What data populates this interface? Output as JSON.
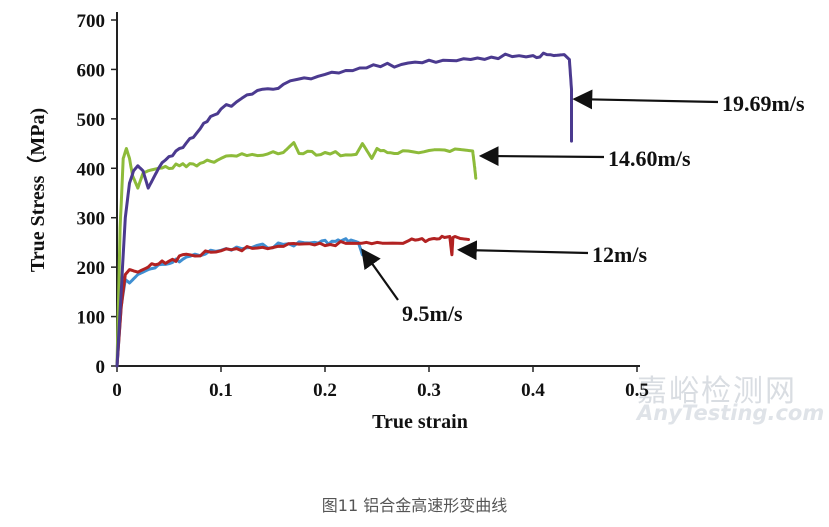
{
  "caption": "图11 铝合金高速形变曲线",
  "watermark": {
    "main": "嘉峪检测网",
    "sub": "AnyTesting.com"
  },
  "chart_data": {
    "type": "line",
    "title": "",
    "xlabel": "True strain",
    "ylabel": "True Stress（MPa)",
    "xlim": [
      0,
      0.5
    ],
    "ylim": [
      0,
      700
    ],
    "x_ticks": [
      0,
      0.1,
      0.2,
      0.3,
      0.4,
      0.5
    ],
    "x_tick_labels": [
      "0",
      "0.1",
      "0.2",
      "0.3",
      "0.4",
      "0.5"
    ],
    "y_ticks": [
      0,
      100,
      200,
      300,
      400,
      500,
      600,
      700
    ],
    "y_tick_labels": [
      "0",
      "100",
      "200",
      "300",
      "400",
      "500",
      "600",
      "700"
    ],
    "grid": false,
    "legend": "none",
    "series": [
      {
        "name": "9.5m/s",
        "color": "#3f8fd2",
        "x": [
          0,
          0.004,
          0.008,
          0.012,
          0.02,
          0.03,
          0.05,
          0.07,
          0.1,
          0.13,
          0.16,
          0.19,
          0.21,
          0.225,
          0.232,
          0.236
        ],
        "y": [
          0,
          120,
          175,
          168,
          185,
          195,
          207,
          222,
          234,
          240,
          246,
          250,
          252,
          255,
          250,
          225
        ]
      },
      {
        "name": "12m/s",
        "color": "#b22222",
        "x": [
          0,
          0.004,
          0.008,
          0.012,
          0.02,
          0.03,
          0.05,
          0.07,
          0.1,
          0.13,
          0.16,
          0.19,
          0.22,
          0.25,
          0.28,
          0.3,
          0.315,
          0.32,
          0.322,
          0.323,
          0.325,
          0.33,
          0.338
        ],
        "y": [
          0,
          120,
          185,
          195,
          190,
          200,
          212,
          225,
          233,
          238,
          242,
          245,
          248,
          250,
          253,
          256,
          260,
          262,
          225,
          260,
          262,
          258,
          256
        ]
      },
      {
        "name": "14.60m/s",
        "color": "#8dbb3a",
        "x": [
          0,
          0.003,
          0.006,
          0.009,
          0.012,
          0.015,
          0.018,
          0.02,
          0.025,
          0.03,
          0.04,
          0.06,
          0.08,
          0.1,
          0.13,
          0.16,
          0.17,
          0.175,
          0.2,
          0.23,
          0.236,
          0.245,
          0.25,
          0.27,
          0.3,
          0.33,
          0.342,
          0.344,
          0.345
        ],
        "y": [
          0,
          280,
          420,
          440,
          420,
          385,
          370,
          360,
          390,
          395,
          400,
          405,
          410,
          420,
          428,
          432,
          452,
          430,
          432,
          428,
          450,
          420,
          440,
          430,
          436,
          438,
          435,
          400,
          380
        ]
      },
      {
        "name": "19.69m/s",
        "color": "#4b3a8f",
        "x": [
          0,
          0.004,
          0.008,
          0.012,
          0.016,
          0.02,
          0.025,
          0.03,
          0.04,
          0.06,
          0.08,
          0.1,
          0.13,
          0.16,
          0.2,
          0.24,
          0.28,
          0.32,
          0.36,
          0.4,
          0.42,
          0.43,
          0.435,
          0.437,
          0.437
        ],
        "y": [
          0,
          150,
          300,
          370,
          395,
          405,
          395,
          360,
          400,
          440,
          480,
          520,
          550,
          570,
          590,
          603,
          613,
          618,
          625,
          628,
          628,
          630,
          620,
          560,
          455
        ]
      }
    ],
    "annotations": [
      {
        "text": "19.69m/s",
        "arrow_to_series": "19.69m/s",
        "point": [
          0.436,
          540
        ]
      },
      {
        "text": "14.60m/s",
        "arrow_to_series": "14.60m/s",
        "point": [
          0.346,
          425
        ]
      },
      {
        "text": "12m/s",
        "arrow_to_series": "12m/s",
        "point": [
          0.325,
          235
        ]
      },
      {
        "text": "9.5m/s",
        "arrow_to_series": "9.5m/s",
        "point": [
          0.232,
          235
        ]
      }
    ]
  }
}
